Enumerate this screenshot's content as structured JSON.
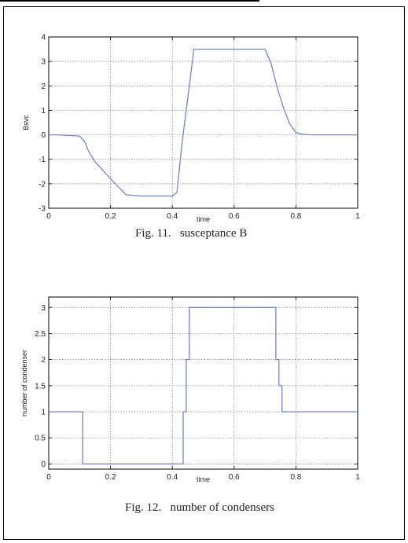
{
  "captions": {
    "fig11": "Fig. 11.   susceptance B",
    "fig12": "Fig. 12.   number of condensers"
  },
  "colors": {
    "series": "#6f86c9",
    "grid": "#555555",
    "axis": "#000000"
  },
  "chart_data": [
    {
      "type": "line",
      "xlabel": "time",
      "ylabel": "Bsvc",
      "xlim": [
        0,
        1
      ],
      "ylim": [
        -3,
        4
      ],
      "xticks": [
        "0",
        "0.2",
        "0.4",
        "0.6",
        "0.8",
        "1"
      ],
      "yticks": [
        "4",
        "3",
        "2",
        "1",
        "0",
        "-1",
        "-2",
        "-3"
      ],
      "grid": true,
      "series": [
        {
          "x": [
            0,
            0.03,
            0.07,
            0.1,
            0.115,
            0.13,
            0.15,
            0.2,
            0.25,
            0.3,
            0.4,
            0.415,
            0.43,
            0.45,
            0.47,
            0.55,
            0.6,
            0.65,
            0.7,
            0.72,
            0.74,
            0.76,
            0.78,
            0.8,
            0.82,
            0.85,
            1.0
          ],
          "y": [
            0,
            0,
            -0.03,
            -0.05,
            -0.25,
            -0.7,
            -1.1,
            -1.8,
            -2.45,
            -2.5,
            -2.5,
            -2.35,
            -0.5,
            1.5,
            3.5,
            3.5,
            3.5,
            3.5,
            3.5,
            2.9,
            1.9,
            1.1,
            0.45,
            0.1,
            0.02,
            0,
            0
          ]
        }
      ]
    },
    {
      "type": "line",
      "xlabel": "time",
      "ylabel": "number of condenser",
      "xlim": [
        0,
        1
      ],
      "ylim": [
        -0.1,
        3.2
      ],
      "xticks": [
        "0",
        "0.2",
        "0.4",
        "0.6",
        "0.8",
        "1"
      ],
      "yticks": [
        "3",
        "2.5",
        "2",
        "1.5",
        "1",
        "0.5",
        "0"
      ],
      "grid": true,
      "series": [
        {
          "x": [
            0,
            0.11,
            0.11,
            0.435,
            0.435,
            0.445,
            0.445,
            0.455,
            0.455,
            0.735,
            0.735,
            0.745,
            0.745,
            0.755,
            0.755,
            1.0
          ],
          "y": [
            1,
            1,
            0,
            0,
            1,
            1,
            2,
            2,
            3,
            3,
            2,
            2,
            1.5,
            1.5,
            1,
            1
          ]
        }
      ]
    }
  ]
}
